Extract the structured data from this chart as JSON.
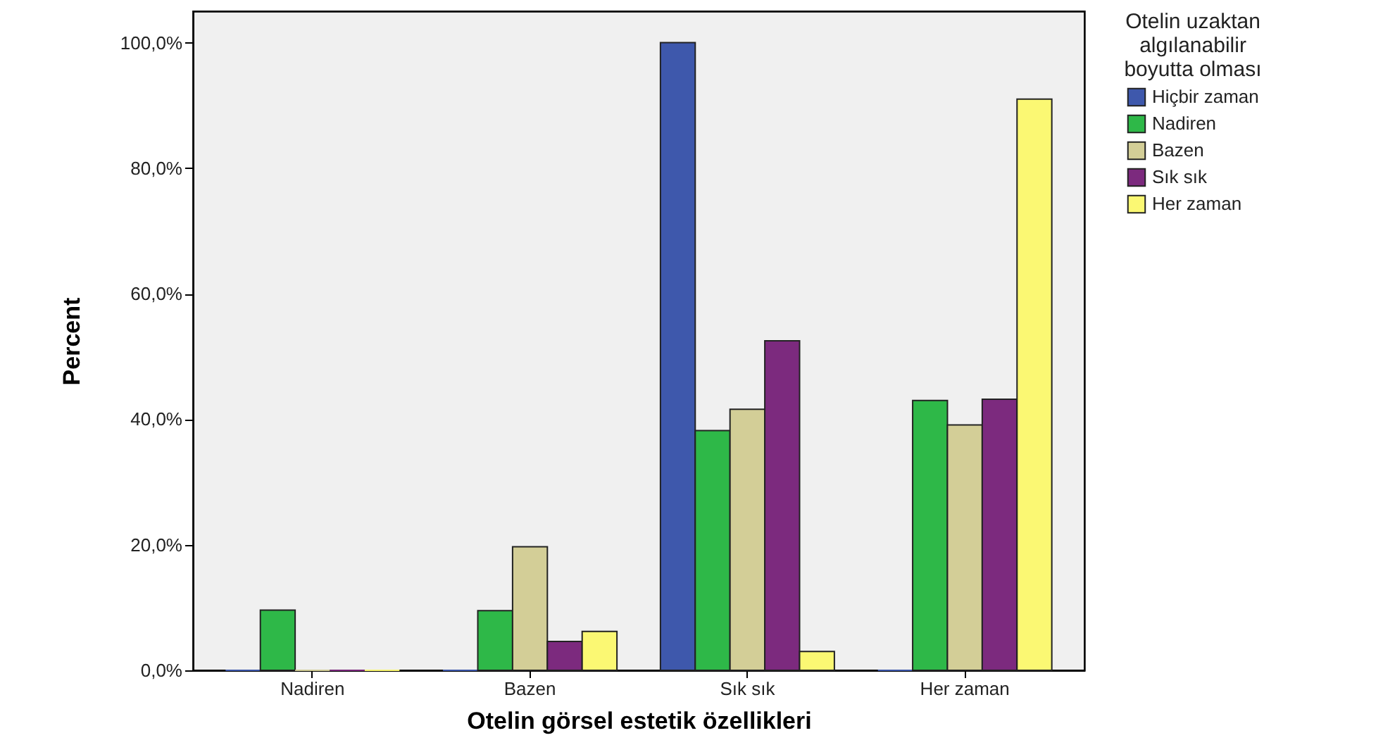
{
  "chart_data": {
    "type": "bar",
    "xlabel": "Otelin görsel estetik özellikleri",
    "ylabel": "Percent",
    "legend_title": "Otelin uzaktan algılanabilir boyutta olması",
    "categories": [
      "Nadiren",
      "Bazen",
      "Sık sık",
      "Her zaman"
    ],
    "series": [
      {
        "name": "Hiçbir zaman",
        "color": "#3e58ac",
        "values": [
          0,
          0,
          100,
          0
        ]
      },
      {
        "name": "Nadiren",
        "color": "#2eb848",
        "values": [
          9.6,
          9.5,
          38.2,
          43.0
        ]
      },
      {
        "name": "Bazen",
        "color": "#d3ce97",
        "values": [
          0,
          19.7,
          41.6,
          39.1
        ]
      },
      {
        "name": "Sık sık",
        "color": "#7c2a7e",
        "values": [
          0,
          4.6,
          52.5,
          43.2
        ]
      },
      {
        "name": "Her zaman",
        "color": "#fbf873",
        "values": [
          0,
          6.2,
          3.0,
          91.0
        ]
      }
    ],
    "ylim": [
      0,
      105
    ],
    "yticks": [
      {
        "value": 0,
        "label": "0,0%"
      },
      {
        "value": 20,
        "label": "20,0%"
      },
      {
        "value": 40,
        "label": "40,0%"
      },
      {
        "value": 60,
        "label": "60,0%"
      },
      {
        "value": 80,
        "label": "80,0%"
      },
      {
        "value": 100,
        "label": "100,0%"
      }
    ],
    "grid": false,
    "legend": "top right"
  }
}
